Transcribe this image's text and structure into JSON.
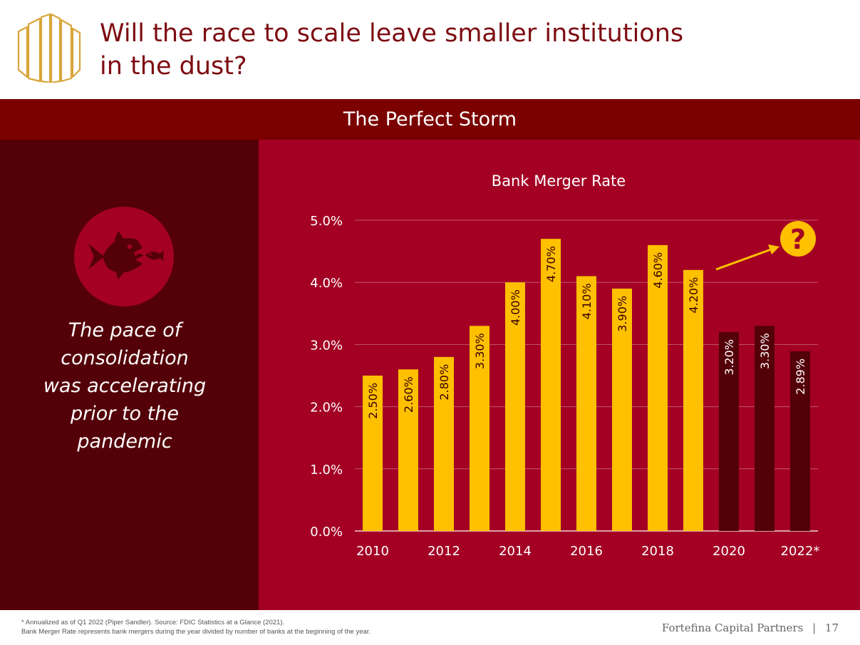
{
  "header": {
    "title_line1": "Will the race to scale leave smaller institutions",
    "title_line2": "in the dust?",
    "banner": "The Perfect Storm"
  },
  "left_panel": {
    "icon": "big-fish-eating-small-fish-icon",
    "quote_lines": [
      "The pace of",
      "consolidation",
      "was accelerating",
      "prior to the",
      "pandemic"
    ]
  },
  "colors": {
    "accent_gold": "#ffc000",
    "dark_bar": "#540008",
    "title_red": "#7d0c12",
    "banner_red": "#7b0000",
    "panel_red": "#a30024"
  },
  "chart_data": {
    "type": "bar",
    "title": "Bank Merger Rate",
    "categories": [
      "2010",
      "2011",
      "2012",
      "2013",
      "2014",
      "2015",
      "2016",
      "2017",
      "2018",
      "2019",
      "2020",
      "2021",
      "2022*"
    ],
    "values": [
      2.5,
      2.6,
      2.8,
      3.3,
      4.0,
      4.7,
      4.1,
      3.9,
      4.6,
      4.2,
      3.2,
      3.3,
      2.89
    ],
    "data_labels": [
      "2.50%",
      "2.60%",
      "2.80%",
      "3.30%",
      "4.00%",
      "4.70%",
      "4.10%",
      "3.90%",
      "4.60%",
      "4.20%",
      "3.20%",
      "3.30%",
      "2.89%"
    ],
    "x_tick_labels": [
      "2010",
      "",
      "2012",
      "",
      "2014",
      "",
      "2016",
      "",
      "2018",
      "",
      "2020",
      "",
      "2022*"
    ],
    "y_ticks": [
      0,
      1,
      2,
      3,
      4,
      5
    ],
    "y_tick_labels": [
      "0.0%",
      "1.0%",
      "2.0%",
      "3.0%",
      "4.0%",
      "5.0%"
    ],
    "ylim": [
      0,
      5
    ],
    "grid": true,
    "bar_styles": [
      "light",
      "light",
      "light",
      "light",
      "light",
      "light",
      "light",
      "light",
      "light",
      "light",
      "dark",
      "dark",
      "dark"
    ],
    "annotation": {
      "symbol": "?",
      "note": "question mark with arrow pointing toward future"
    }
  },
  "footer": {
    "footnote_line1": "* Annualized as of Q1 2022 (Piper Sandler).  Source: FDIC Statistics at a Glance (2021).",
    "footnote_line2": "Bank Merger Rate represents bank mergers during the year divided by number of banks at the beginning of the year.",
    "brand": "Fortefina Capital Partners",
    "separator": "|",
    "page_number": "17"
  }
}
